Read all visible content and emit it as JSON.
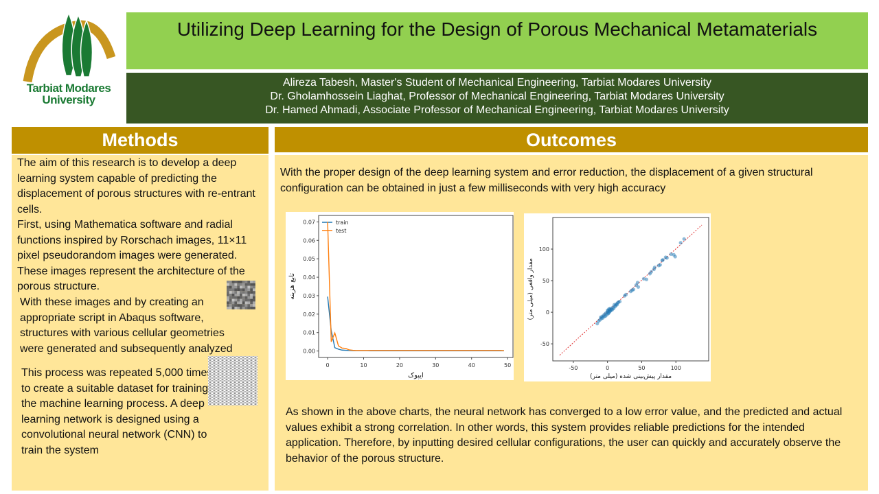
{
  "logo": {
    "text_line1": "Tarbiat Modares",
    "text_line2": "University",
    "colors": {
      "green": "#1a7a33",
      "gold": "#c9961e"
    }
  },
  "header": {
    "title": "Utilizing Deep Learning for the Design of Porous Mechanical Metamaterials",
    "authors": [
      "Alireza Tabesh, Master's Student of Mechanical Engineering, Tarbiat Modares University",
      "Dr. Gholamhossein Liaghat, Professor of Mechanical Engineering, Tarbiat Modares University",
      "Dr. Hamed Ahmadi, Associate Professor of Mechanical Engineering, Tarbiat Modares University"
    ]
  },
  "colors": {
    "title_bg": "#92d050",
    "authors_bg": "#375623",
    "section_header_bg": "#bf9000",
    "section_body_bg": "#ffe699"
  },
  "methods": {
    "heading": "Methods",
    "p1": "The aim of this research is to develop a deep learning system capable of predicting the displacement of porous structures with re-entrant cells.",
    "p2": "First, using Mathematica software and radial functions inspired by Rorschach images, 11×11 pixel pseudorandom images were generated. These images represent the architecture of the porous structure.",
    "p3": "With these images and by creating an appropriate script in Abaqus software, structures with various cellular geometries were generated and subsequently analyzed",
    "p4": "This process was repeated 5,000 times to create a suitable dataset for training the machine learning process. A deep learning network is designed using a convolutional neural network (CNN) to train the system"
  },
  "outcomes": {
    "heading": "Outcomes",
    "p1": "With the proper design of the deep learning system and error reduction, the displacement of a given structural configuration can be obtained in just a few milliseconds with very high accuracy",
    "p2": "As shown in the above charts, the neural network has converged to a low error value, and the predicted and actual values exhibit a strong correlation. In other words, this system provides reliable predictions for the intended application. Therefore, by inputting desired cellular configurations, the user can quickly and accurately observe the behavior of the porous structure."
  },
  "chart_data": [
    {
      "type": "line",
      "xlabel": "ایپوک",
      "ylabel": "تابع هزینه",
      "xlim": [
        -2.5,
        51.5
      ],
      "ylim": [
        -0.0035,
        0.0735
      ],
      "xticks": [
        0,
        10,
        20,
        30,
        40,
        50
      ],
      "yticks": [
        0.0,
        0.01,
        0.02,
        0.03,
        0.04,
        0.05,
        0.06,
        0.07
      ],
      "ytick_labels": [
        "0.00",
        "0.01",
        "0.02",
        "0.03",
        "0.04",
        "0.05",
        "0.06",
        "0.07"
      ],
      "legend_position": "top-left",
      "grid": false,
      "series": [
        {
          "name": "train",
          "color": "#1f77b4",
          "x_start": 0,
          "values": [
            0.0295,
            0.011,
            0.0018,
            0.001,
            0.0005,
            0.0004,
            0.0003,
            0.0002,
            0.0002,
            0.0002,
            0.0002,
            0.0002,
            0.0001,
            0.0001,
            0.0001,
            0.0001,
            0.0001,
            0.0001,
            0.0001,
            0.0001,
            0.0001,
            0.0001,
            0.0001,
            0.0001,
            0.0001,
            0.0001,
            0.0001,
            0.0001,
            0.0001,
            0.0001,
            0.0001,
            0.0001,
            0.0001,
            0.0001,
            0.0001,
            0.0001,
            0.0001,
            0.0001,
            0.0001,
            0.0001,
            0.0001,
            0.0001,
            0.0001,
            0.0001,
            0.0001,
            0.0001,
            0.0001,
            0.0001,
            0.0001,
            0.0001
          ]
        },
        {
          "name": "test",
          "color": "#ff7f0e",
          "x_start": 0,
          "values": [
            0.07,
            0.005,
            0.0098,
            0.0028,
            0.0016,
            0.0014,
            0.0006,
            0.0004,
            0.0003,
            0.0003,
            0.0003,
            0.0003,
            0.0003,
            0.0003,
            0.0003,
            0.0003,
            0.0003,
            0.0003,
            0.0003,
            0.0003,
            0.0003,
            0.0003,
            0.0003,
            0.0003,
            0.0003,
            0.0003,
            0.0003,
            0.0003,
            0.0003,
            0.0003,
            0.0003,
            0.0003,
            0.0003,
            0.0003,
            0.0003,
            0.0003,
            0.0003,
            0.0003,
            0.0003,
            0.0003,
            0.0003,
            0.0003,
            0.0003,
            0.0003,
            0.0003,
            0.0003,
            0.0003,
            0.0003,
            0.0003,
            0.0002
          ]
        }
      ]
    },
    {
      "type": "scatter",
      "xlabel": "مقدار پیش‌بینی شده (میلی متر)",
      "ylabel": "مقدار واقعی (میلی متر)",
      "xlim": [
        -80,
        148
      ],
      "ylim": [
        -77,
        150
      ],
      "xticks": [
        -50,
        0,
        50,
        100
      ],
      "yticks": [
        -50,
        0,
        50,
        100
      ],
      "grid": false,
      "point_color": "#1f77b4",
      "reference_line": {
        "color": "#e03030",
        "style": "dashed",
        "from": [
          -70,
          -68
        ],
        "to": [
          138,
          138
        ]
      },
      "points": [
        [
          -15,
          -18
        ],
        [
          -13,
          -14
        ],
        [
          -11,
          -12
        ],
        [
          -10,
          -8
        ],
        [
          -9,
          -10
        ],
        [
          -8,
          -7
        ],
        [
          -7,
          -9
        ],
        [
          -6,
          -5
        ],
        [
          -5,
          -7
        ],
        [
          -4,
          -3
        ],
        [
          -3,
          -6
        ],
        [
          -2,
          -1
        ],
        [
          -1,
          -4
        ],
        [
          0,
          0
        ],
        [
          0,
          3
        ],
        [
          1,
          -2
        ],
        [
          1,
          2
        ],
        [
          2,
          5
        ],
        [
          2,
          -1
        ],
        [
          3,
          1
        ],
        [
          3,
          4
        ],
        [
          4,
          2
        ],
        [
          4,
          6
        ],
        [
          5,
          3
        ],
        [
          6,
          5
        ],
        [
          7,
          4
        ],
        [
          8,
          8
        ],
        [
          9,
          6
        ],
        [
          10,
          12
        ],
        [
          11,
          9
        ],
        [
          12,
          11
        ],
        [
          13,
          13
        ],
        [
          14,
          12
        ],
        [
          15,
          15
        ],
        [
          16,
          16
        ],
        [
          18,
          17
        ],
        [
          25,
          26
        ],
        [
          27,
          28
        ],
        [
          34,
          33
        ],
        [
          36,
          35
        ],
        [
          38,
          36
        ],
        [
          42,
          43
        ],
        [
          44,
          47
        ],
        [
          45,
          40
        ],
        [
          53,
          53
        ],
        [
          57,
          52
        ],
        [
          62,
          61
        ],
        [
          64,
          64
        ],
        [
          68,
          68
        ],
        [
          69,
          71
        ],
        [
          75,
          74
        ],
        [
          77,
          75
        ],
        [
          80,
          82
        ],
        [
          81,
          83
        ],
        [
          85,
          87
        ],
        [
          87,
          86
        ],
        [
          93,
          92
        ],
        [
          97,
          91
        ],
        [
          99,
          88
        ],
        [
          107,
          110
        ],
        [
          112,
          116
        ]
      ]
    }
  ]
}
